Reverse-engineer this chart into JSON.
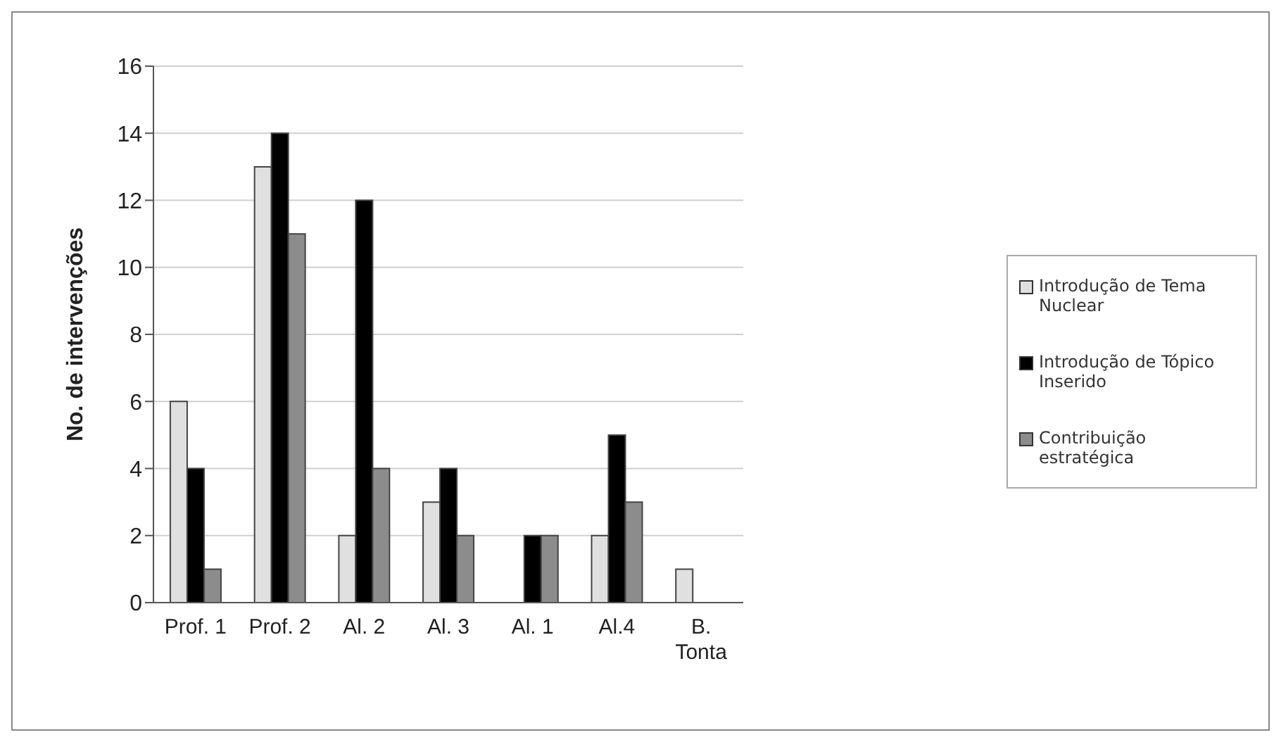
{
  "chart_data": {
    "type": "bar",
    "ylabel": "No. de intervenções",
    "categories": [
      "Prof. 1",
      "Prof. 2",
      "Al. 2",
      "Al. 3",
      "Al. 1",
      "Al.4",
      "B.\nTonta"
    ],
    "series": [
      {
        "name": "Introdução de Tema Nuclear",
        "color": "#e0e0e0",
        "values": [
          6,
          13,
          2,
          3,
          0,
          2,
          1
        ]
      },
      {
        "name": "Introdução de Tópico Inserido",
        "color": "#000000",
        "values": [
          4,
          14,
          12,
          4,
          2,
          5,
          0
        ]
      },
      {
        "name": "Contribuição estratégica",
        "color": "#8c8c8c",
        "values": [
          1,
          11,
          4,
          2,
          2,
          3,
          0
        ]
      }
    ],
    "ylim": [
      0,
      16
    ],
    "yticks": [
      0,
      2,
      4,
      6,
      8,
      10,
      12,
      14,
      16
    ],
    "grid": "y",
    "legend": "right"
  }
}
